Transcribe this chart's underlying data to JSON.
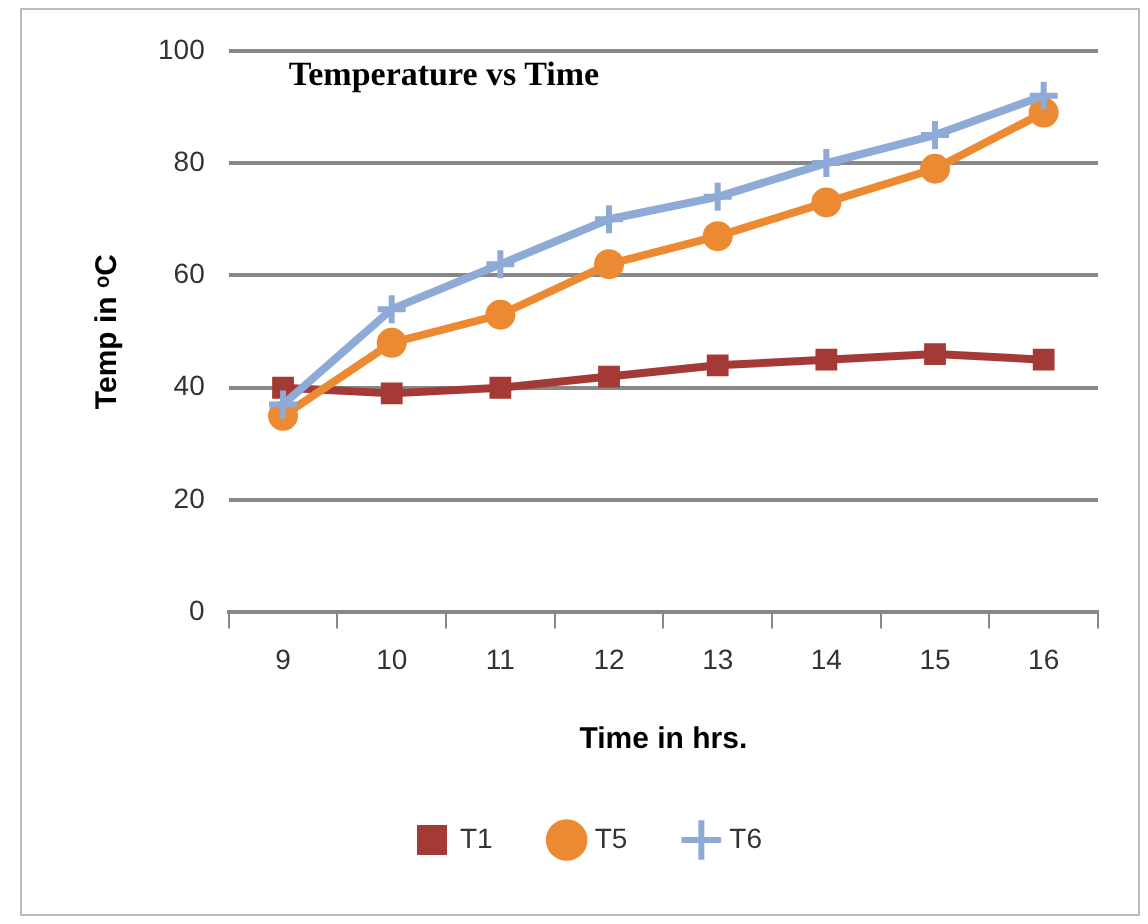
{
  "chart_data": {
    "type": "line",
    "title": "Temperature vs Time",
    "xlabel": "Time in hrs.",
    "ylabel": "Temp in ᵒC",
    "categories": [
      "9",
      "10",
      "11",
      "12",
      "13",
      "14",
      "15",
      "16"
    ],
    "series": [
      {
        "name": "T1",
        "color": "#a33a36",
        "marker": "square",
        "values": [
          40,
          39,
          40,
          42,
          44,
          45,
          46,
          45
        ]
      },
      {
        "name": "T5",
        "color": "#ec8a33",
        "marker": "circle",
        "values": [
          35,
          48,
          53,
          62,
          67,
          73,
          79,
          89
        ]
      },
      {
        "name": "T6",
        "color": "#8eaad6",
        "marker": "cross",
        "values": [
          37,
          54,
          62,
          70,
          74,
          80,
          85,
          92
        ]
      }
    ],
    "ylim": [
      0,
      100
    ],
    "yticks": [
      0,
      20,
      40,
      60,
      80,
      100
    ],
    "grid": "y",
    "legend": "bottom"
  }
}
